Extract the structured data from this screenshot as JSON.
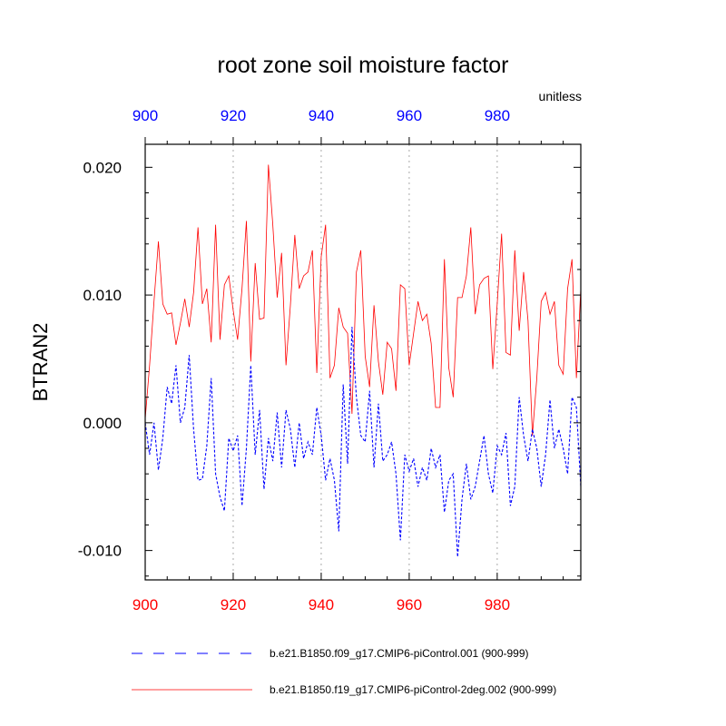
{
  "chart_data": {
    "type": "line",
    "title": "root zone soil moisture factor",
    "units": "unitless",
    "ylabel": "BTRAN2",
    "xlim": [
      900,
      999
    ],
    "ylim": [
      -0.0123,
      0.0218
    ],
    "x_ticks": [
      "900",
      "920",
      "940",
      "960",
      "980"
    ],
    "x_tick_values": [
      900,
      920,
      940,
      960,
      980
    ],
    "y_ticks": [
      "-0.010",
      "0.000",
      "0.010",
      "0.020"
    ],
    "y_tick_values": [
      -0.01,
      0.0,
      0.01,
      0.02
    ],
    "bottom_axis_color": "#ff0000",
    "top_axis_color": "#0000ff",
    "grid": "dotted vertical lines at x ticks",
    "x_start": 900,
    "series": [
      {
        "name": "b.e21.B1850.f09_g17.CMIP6-piControl.001 (900-999)",
        "color": "#0000ff",
        "style": "dashed",
        "values": [
          0.0,
          -0.0025,
          0.0,
          -0.0037,
          -0.0012,
          0.0028,
          0.0015,
          0.0045,
          0.0,
          0.0012,
          0.0053,
          -0.0005,
          -0.0045,
          -0.0044,
          -0.0018,
          0.0035,
          -0.004,
          -0.0058,
          -0.0069,
          -0.0012,
          -0.0022,
          -0.001,
          -0.0065,
          -0.002,
          0.0045,
          -0.0025,
          0.001,
          -0.0052,
          -0.0012,
          -0.003,
          0.0008,
          -0.0035,
          0.001,
          -0.0005,
          -0.0035,
          0.0,
          -0.0028,
          -0.0015,
          -0.0025,
          0.0012,
          -0.001,
          -0.0045,
          -0.0028,
          -0.0045,
          -0.0085,
          0.003,
          -0.0032,
          0.0075,
          0.002,
          -0.001,
          -0.0015,
          0.0025,
          -0.0035,
          0.0015,
          -0.003,
          -0.0025,
          -0.0015,
          -0.004,
          -0.0092,
          -0.0025,
          -0.0038,
          -0.0028,
          -0.005,
          -0.0035,
          -0.0045,
          -0.002,
          -0.0035,
          -0.0025,
          -0.007,
          -0.0045,
          -0.004,
          -0.0105,
          -0.006,
          -0.0032,
          -0.006,
          -0.005,
          -0.003,
          -0.001,
          -0.004,
          -0.0055,
          -0.0018,
          -0.0025,
          -0.0008,
          -0.0065,
          -0.005,
          0.002,
          -0.001,
          -0.003,
          -0.0005,
          -0.002,
          -0.005,
          -0.0025,
          0.0018,
          -0.002,
          -0.0005,
          -0.002,
          -0.004,
          0.002,
          0.0012,
          -0.005
        ]
      },
      {
        "name": "b.e21.B1850.f19_g17.CMIP6-piControl-2deg.002 (900-999)",
        "color": "#ff0000",
        "style": "solid",
        "values": [
          0.0003,
          0.0045,
          0.0095,
          0.0142,
          0.0093,
          0.0085,
          0.0086,
          0.0061,
          0.0078,
          0.0097,
          0.0075,
          0.0102,
          0.0153,
          0.0093,
          0.0105,
          0.0063,
          0.0155,
          0.0065,
          0.0108,
          0.0115,
          0.0088,
          0.0065,
          0.0105,
          0.0158,
          0.0048,
          0.0125,
          0.0081,
          0.0082,
          0.0202,
          0.0155,
          0.0098,
          0.0133,
          0.0045,
          0.0092,
          0.0147,
          0.0105,
          0.0115,
          0.0118,
          0.0135,
          0.0039,
          0.013,
          0.0155,
          0.0035,
          0.0045,
          0.009,
          0.0075,
          0.007,
          0.0007,
          0.0118,
          0.0135,
          0.0052,
          0.0028,
          0.0092,
          0.0048,
          0.0022,
          0.0063,
          0.0058,
          0.0025,
          0.0108,
          0.0105,
          0.0045,
          0.007,
          0.0095,
          0.008,
          0.0085,
          0.0062,
          0.0012,
          0.0012,
          0.0128,
          0.0043,
          0.002,
          0.0098,
          0.0098,
          0.0115,
          0.0153,
          0.0085,
          0.0108,
          0.0113,
          0.0115,
          0.0042,
          0.0093,
          0.0148,
          0.0055,
          0.0053,
          0.0135,
          0.0072,
          0.0118,
          0.008,
          -0.001,
          0.0035,
          0.0095,
          0.0102,
          0.0085,
          0.0095,
          0.0045,
          0.0038,
          0.0105,
          0.0128,
          0.0035,
          0.0105
        ]
      }
    ]
  }
}
